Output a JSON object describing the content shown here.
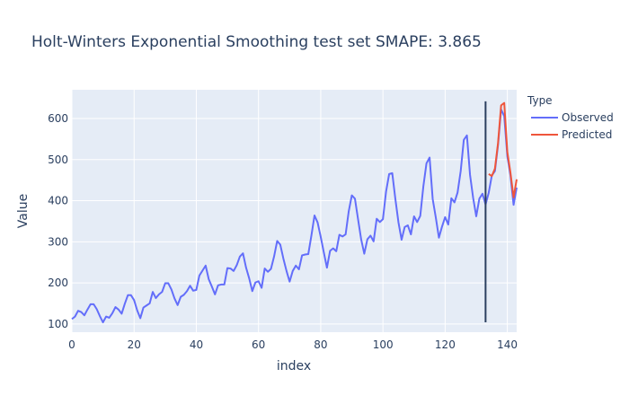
{
  "chart_data": {
    "type": "line",
    "title": "Holt-Winters Exponential Smoothing test set SMAPE: 3.865",
    "xlabel": "index",
    "ylabel": "Value",
    "xlim": [
      0,
      143
    ],
    "ylim": [
      80,
      670
    ],
    "x_ticks": [
      0,
      20,
      40,
      60,
      80,
      100,
      120,
      140
    ],
    "y_ticks": [
      100,
      200,
      300,
      400,
      500,
      600
    ],
    "grid": true,
    "legend": {
      "title": "Type",
      "placement": "right"
    },
    "vline": {
      "x": 133,
      "ymin": 104,
      "ymax": 642,
      "color": "#2a3f5f"
    },
    "series": [
      {
        "name": "Observed",
        "color": "#636efa",
        "x_start": 0,
        "values": [
          112,
          118,
          132,
          129,
          121,
          135,
          148,
          148,
          136,
          119,
          104,
          118,
          115,
          126,
          141,
          135,
          125,
          149,
          170,
          170,
          158,
          133,
          114,
          140,
          145,
          150,
          178,
          163,
          172,
          178,
          199,
          199,
          184,
          162,
          146,
          166,
          171,
          180,
          193,
          181,
          183,
          218,
          230,
          242,
          209,
          191,
          172,
          194,
          196,
          196,
          236,
          235,
          229,
          243,
          264,
          272,
          237,
          211,
          180,
          201,
          204,
          188,
          235,
          227,
          234,
          264,
          302,
          293,
          259,
          229,
          203,
          229,
          242,
          233,
          267,
          269,
          270,
          315,
          364,
          347,
          312,
          274,
          237,
          278,
          284,
          277,
          317,
          313,
          318,
          374,
          413,
          405,
          355,
          306,
          271,
          306,
          315,
          301,
          356,
          348,
          355,
          422,
          465,
          467,
          404,
          347,
          305,
          336,
          340,
          318,
          362,
          348,
          363,
          435,
          491,
          505,
          404,
          359,
          310,
          337,
          360,
          342,
          406,
          396,
          420,
          472,
          548,
          559,
          463,
          407,
          362,
          405,
          417,
          391,
          419,
          461,
          472,
          535,
          622,
          606,
          508,
          461,
          390,
          432
        ]
      },
      {
        "name": "Predicted",
        "color": "#ef553b",
        "x_start": 134,
        "values": [
          465,
          460,
          478,
          540,
          632,
          638,
          518,
          468,
          408,
          452
        ]
      }
    ]
  }
}
